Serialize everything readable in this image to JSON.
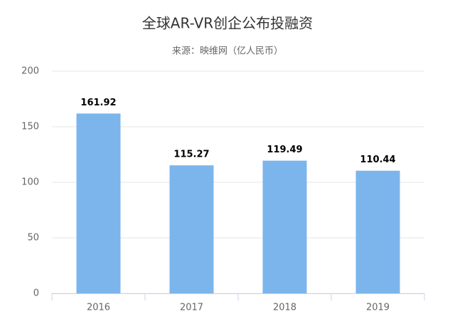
{
  "chart_data": {
    "type": "bar",
    "title": "全球AR-VR创企公布投融资",
    "subtitle": "来源：映维网（亿人民币）",
    "categories": [
      "2016",
      "2017",
      "2018",
      "2019"
    ],
    "values": [
      161.92,
      115.27,
      119.49,
      110.44
    ],
    "color": "#7cb5ec",
    "ylim": [
      0,
      200
    ],
    "yticks": [
      0,
      50,
      100,
      150,
      200
    ],
    "grid": true,
    "data_labels": true
  }
}
